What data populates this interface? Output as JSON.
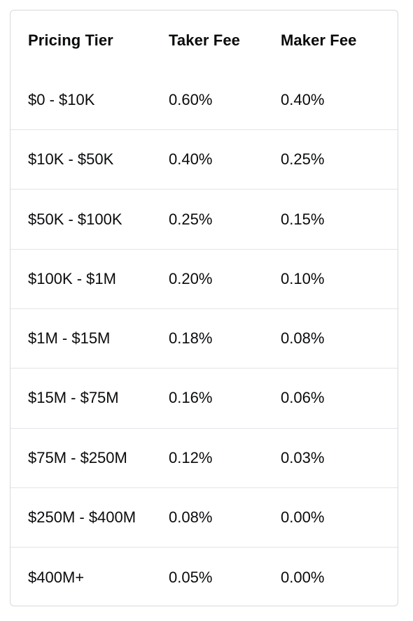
{
  "table": {
    "headers": [
      "Pricing Tier",
      "Taker Fee",
      "Maker Fee"
    ],
    "rows": [
      [
        "$0 - $10K",
        "0.60%",
        "0.40%"
      ],
      [
        "$10K - $50K",
        "0.40%",
        "0.25%"
      ],
      [
        "$50K - $100K",
        "0.25%",
        "0.15%"
      ],
      [
        "$100K - $1M",
        "0.20%",
        "0.10%"
      ],
      [
        "$1M - $15M",
        "0.18%",
        "0.08%"
      ],
      [
        "$15M - $75M",
        "0.16%",
        "0.06%"
      ],
      [
        "$75M - $250M",
        "0.12%",
        "0.03%"
      ],
      [
        "$250M - $400M",
        "0.08%",
        "0.00%"
      ],
      [
        "$400M+",
        "0.05%",
        "0.00%"
      ]
    ]
  },
  "colors": {
    "text": "#0a0b0d",
    "border": "#d7d9dd",
    "row_divider": "#e2e4e8",
    "background": "#ffffff"
  }
}
